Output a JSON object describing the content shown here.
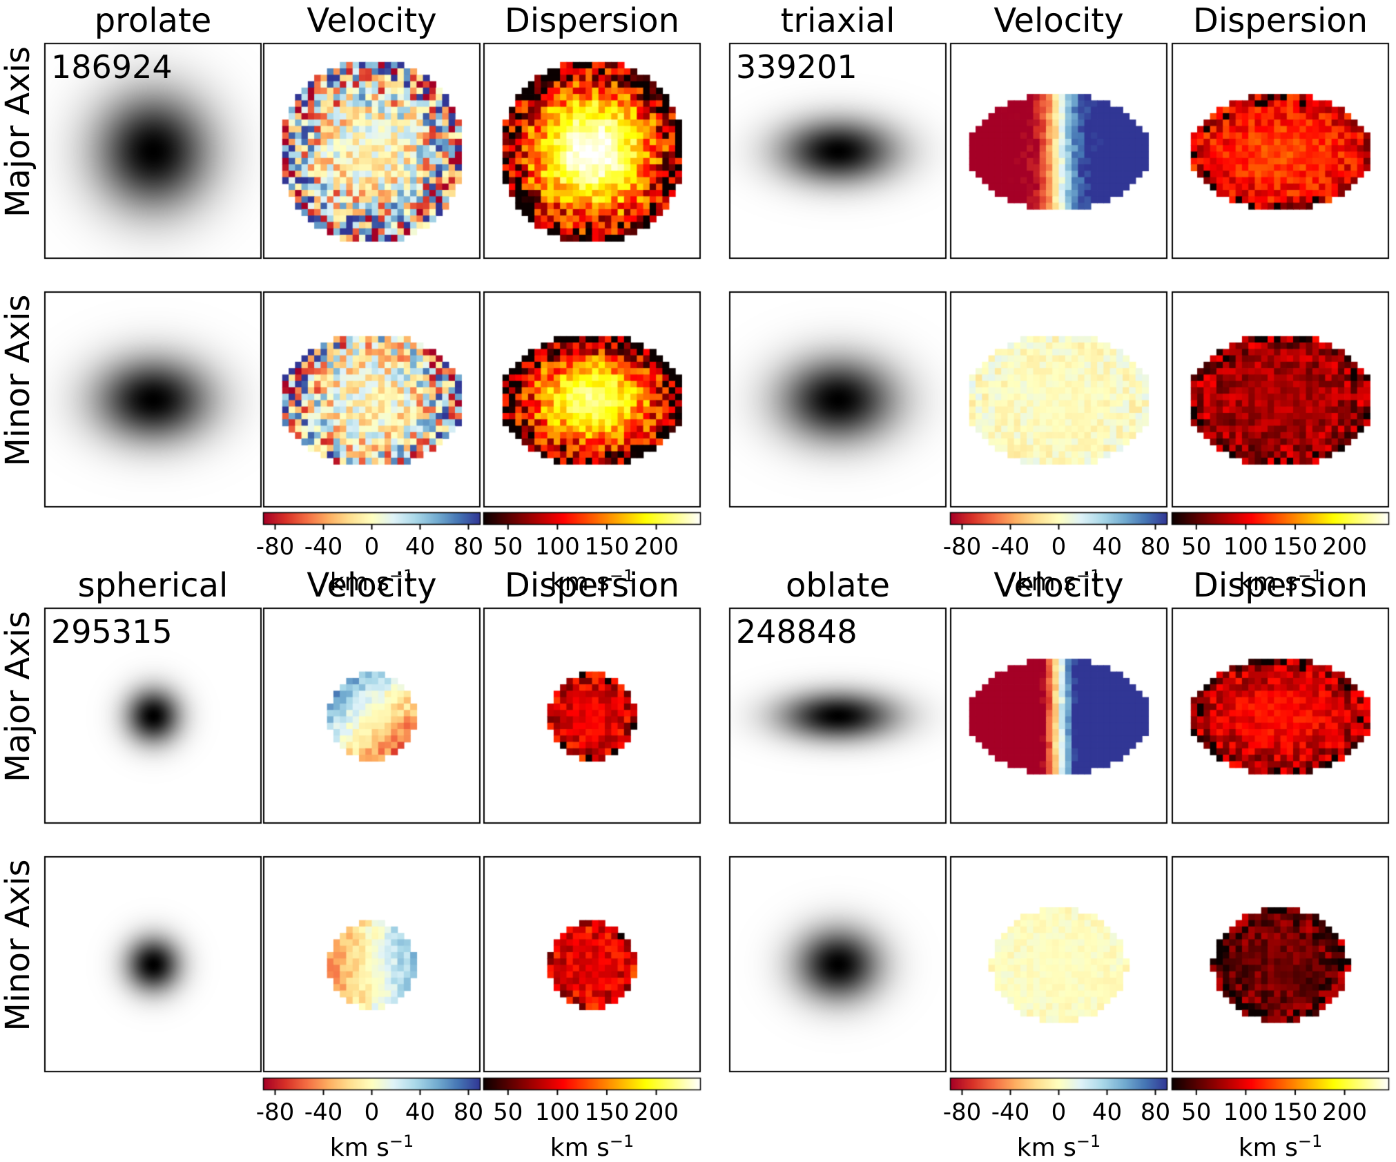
{
  "chart_data": {
    "type": "heatmap",
    "description_groups": [
      {
        "shape": "prolate",
        "id": "186924",
        "columns": [
          "prolate",
          "Velocity",
          "Dispersion"
        ],
        "rows": [
          "Major Axis",
          "Minor Axis"
        ],
        "maps": {
          "Major Axis": {
            "image_axis_ratio": 1.0,
            "image_size": 0.85,
            "velocity_pattern": "noise",
            "velocity_noise": 0.9,
            "dispersion_center": 250,
            "dispersion_edge": 30
          },
          "Minor Axis": {
            "image_axis_ratio": 0.72,
            "image_size": 0.85,
            "velocity_pattern": "noise",
            "velocity_noise": 0.9,
            "dispersion_center": 220,
            "dispersion_edge": 30
          }
        }
      },
      {
        "shape": "triaxial",
        "id": "339201",
        "columns": [
          "triaxial",
          "Velocity",
          "Dispersion"
        ],
        "rows": [
          "Major Axis",
          "Minor Axis"
        ],
        "maps": {
          "Major Axis": {
            "image_axis_ratio": 0.55,
            "image_size": 0.85,
            "velocity_pattern": "rotation",
            "velocity_amplitude": 100,
            "dispersion_center": 130,
            "dispersion_edge": 90
          },
          "Minor Axis": {
            "image_axis_ratio": 0.72,
            "image_size": 0.85,
            "velocity_pattern": "flat",
            "velocity_noise": 0.15,
            "dispersion_center": 80,
            "dispersion_edge": 70
          }
        }
      },
      {
        "shape": "spherical",
        "id": "295315",
        "columns": [
          "spherical",
          "Velocity",
          "Dispersion"
        ],
        "rows": [
          "Major Axis",
          "Minor Axis"
        ],
        "maps": {
          "Major Axis": {
            "image_axis_ratio": 1.0,
            "image_size": 0.4,
            "velocity_pattern": "diagonal",
            "velocity_amplitude": 40,
            "dispersion_center": 100,
            "dispersion_edge": 90
          },
          "Minor Axis": {
            "image_axis_ratio": 1.0,
            "image_size": 0.4,
            "velocity_pattern": "weak-rotation",
            "velocity_amplitude": 35,
            "dispersion_center": 100,
            "dispersion_edge": 95
          }
        }
      },
      {
        "shape": "oblate",
        "id": "248848",
        "columns": [
          "oblate",
          "Velocity",
          "Dispersion"
        ],
        "rows": [
          "Major Axis",
          "Minor Axis"
        ],
        "maps": {
          "Major Axis": {
            "image_axis_ratio": 0.42,
            "image_size": 0.85,
            "velocity_pattern": "rotation",
            "velocity_amplitude": 140,
            "dispersion_center": 110,
            "dispersion_edge": 70
          },
          "Minor Axis": {
            "image_axis_ratio": 0.85,
            "image_size": 0.62,
            "velocity_pattern": "flat",
            "velocity_noise": 0.08,
            "dispersion_center": 60,
            "dispersion_edge": 55
          }
        }
      }
    ],
    "velocity_colorbar": {
      "colormap": "RdYlBu",
      "range": [
        -90,
        90
      ],
      "ticks": [
        -80,
        -40,
        0,
        40,
        80
      ],
      "tick_labels": [
        "-80",
        "-40",
        "0",
        "40",
        "80"
      ],
      "unit_base": "km s",
      "unit_exp": "−1"
    },
    "dispersion_colorbar": {
      "colormap": "hot",
      "range": [
        25,
        245
      ],
      "ticks": [
        50,
        100,
        150,
        200
      ],
      "tick_labels": [
        "50",
        "100",
        "150",
        "200"
      ],
      "unit_base": "km s",
      "unit_exp": "−1"
    }
  },
  "colors": {
    "panel_border": "#000000",
    "image_core": "#000000",
    "velocity_blue": "#313695",
    "velocity_red": "#a50026",
    "velocity_mid": "#ffffbf",
    "dispersion_low": "#0b0000",
    "dispersion_high": "#ffffff"
  }
}
